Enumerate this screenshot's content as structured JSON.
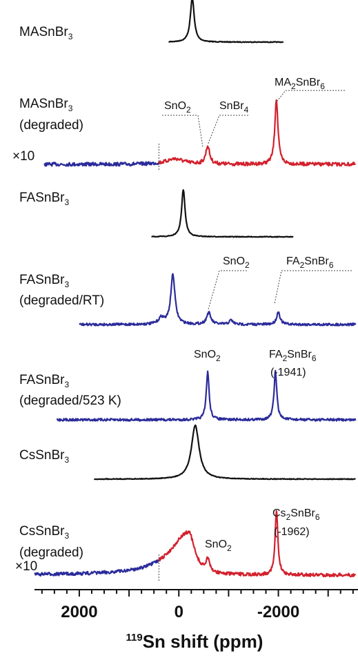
{
  "chart_data": {
    "type": "line",
    "xlabel_sup": "119",
    "xlabel_main": "Sn shift (ppm)",
    "x_reversed": true,
    "xlim": [
      2900,
      -3600
    ],
    "xtick_labels": [
      {
        "value": 2000,
        "text": "2000"
      },
      {
        "value": 0,
        "text": "0"
      },
      {
        "value": -2000,
        "text": "-2000"
      }
    ],
    "minor_tick_step": 250,
    "colors": {
      "black": "#111111",
      "blue": "#2b2b9b",
      "red": "#d2202c"
    },
    "spectra": [
      {
        "label_main": "MASnBr",
        "label_sub": "3",
        "label_line2": "",
        "base_ppm": -1800,
        "base_offset": 0,
        "noise": 0.5,
        "segments": [
          {
            "from": 200,
            "to": -2100,
            "color": "black"
          }
        ],
        "peaks": [
          {
            "center": -270,
            "width": 55,
            "height": 64
          }
        ]
      },
      {
        "label_main": "MASnBr",
        "label_sub": "3",
        "label_line2": "(degraded)",
        "scale_label": "×10",
        "base_ppm": -1800,
        "base_offset": 0,
        "noise": 2.6,
        "segments": [
          {
            "from": 2700,
            "to": 400,
            "color": "blue"
          },
          {
            "from": 400,
            "to": -3550,
            "color": "red"
          }
        ],
        "peaks": [
          {
            "center": 80,
            "width": 250,
            "height": 8
          },
          {
            "center": -580,
            "width": 55,
            "height": 26
          },
          {
            "center": -1960,
            "width": 45,
            "height": 94
          }
        ],
        "divider_ppm": 400,
        "annotations": [
          {
            "main": "SnO",
            "sub": "2",
            "tail": "",
            "peak_ppm": 450
          },
          {
            "main": "SnBr",
            "sub": "4",
            "tail": "",
            "peak_ppm": -620
          },
          {
            "main": "MA",
            "sub": "2",
            "tail": "SnBr",
            "sub2": "6",
            "peak_ppm": -1960
          }
        ]
      },
      {
        "label_main": "FASnBr",
        "label_sub": "3",
        "label_line2": "",
        "base_ppm": -1800,
        "base_offset": 0,
        "noise": 0.5,
        "segments": [
          {
            "from": 550,
            "to": -2300,
            "color": "black"
          }
        ],
        "peaks": [
          {
            "center": -90,
            "width": 50,
            "height": 68
          }
        ]
      },
      {
        "label_main": "FASnBr",
        "label_sub": "3",
        "label_line2": "(degraded/RT)",
        "base_ppm": -1800,
        "base_offset": 0,
        "noise": 1.8,
        "segments": [
          {
            "from": 2000,
            "to": -3550,
            "color": "blue"
          }
        ],
        "peaks": [
          {
            "center": 350,
            "width": 80,
            "height": 9
          },
          {
            "center": 120,
            "width": 60,
            "height": 72
          },
          {
            "center": -600,
            "width": 60,
            "height": 17
          },
          {
            "center": -1050,
            "width": 55,
            "height": 6
          },
          {
            "center": -2000,
            "width": 50,
            "height": 18
          }
        ],
        "annotations": [
          {
            "main": "SnO",
            "sub": "2",
            "tail": "",
            "peak_ppm": -600
          },
          {
            "main": "FA",
            "sub": "2",
            "tail": "SnBr",
            "sub2": "6",
            "peak_ppm": -2000
          }
        ]
      },
      {
        "label_main": "FASnBr",
        "label_sub": "3",
        "label_line2": "(degraded/523 K)",
        "base_ppm": -1800,
        "base_offset": 0,
        "noise": 1.8,
        "segments": [
          {
            "from": 2450,
            "to": -3550,
            "color": "blue"
          }
        ],
        "peaks": [
          {
            "center": -580,
            "width": 40,
            "height": 70
          },
          {
            "center": -1941,
            "width": 40,
            "height": 70
          }
        ],
        "annotations": [
          {
            "main": "SnO",
            "sub": "2",
            "tail": "",
            "peak_ppm": -580
          },
          {
            "main": "FA",
            "sub": "2",
            "tail": "SnBr",
            "sub2": "6",
            "line2": "(-1941)",
            "peak_ppm": -1941
          }
        ]
      },
      {
        "label_main": "CsSnBr",
        "label_sub": "3",
        "label_line2": "",
        "base_ppm": -1800,
        "base_offset": 0,
        "noise": 0.5,
        "segments": [
          {
            "from": 1700,
            "to": -3550,
            "color": "black"
          }
        ],
        "peaks": [
          {
            "center": -330,
            "width": 110,
            "height": 78
          }
        ]
      },
      {
        "label_main": "CsSnBr",
        "label_sub": "3",
        "label_line2": "(degraded)",
        "scale_label": "×10",
        "base_ppm": -1800,
        "base_offset": 0,
        "noise": 2.4,
        "segments": [
          {
            "from": 2900,
            "to": 400,
            "color": "blue"
          },
          {
            "from": 400,
            "to": -3550,
            "color": "red"
          }
        ],
        "peaks": [
          {
            "center": -200,
            "width": 170,
            "height": 62,
            "left_width": 520
          },
          {
            "center": -580,
            "width": 50,
            "height": 18
          },
          {
            "center": -1962,
            "width": 40,
            "height": 92
          }
        ],
        "divider_ppm": 400,
        "annotations": [
          {
            "main": "SnO",
            "sub": "2",
            "tail": "",
            "peak_ppm": -580
          },
          {
            "main": "Cs",
            "sub": "2",
            "tail": "SnBr",
            "sub2": "6",
            "line2": "(-1962)",
            "peak_ppm": -1962
          }
        ]
      }
    ]
  }
}
